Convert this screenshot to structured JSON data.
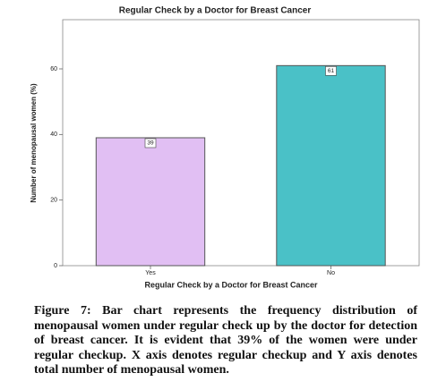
{
  "chart_data": {
    "type": "bar",
    "title": "Regular Check by a Doctor for Breast Cancer",
    "x_label": "Regular Check by a Doctor for Breast Cancer",
    "y_label": "Number of menopausal women (%)",
    "categories": [
      "Yes",
      "No"
    ],
    "values": [
      39,
      61
    ],
    "colors": [
      "#e1bff3",
      "#4ac1c7"
    ],
    "ylim": [
      0,
      75
    ],
    "yticks": [
      0,
      20,
      40,
      60
    ],
    "grid": false
  },
  "caption": "Figure 7: Bar chart represents the frequency distribution of menopausal women under regular check up by the doctor for detection of breast cancer. It is evident that 39% of the women were under regular checkup. X axis denotes regular checkup and Y axis denotes total number of menopausal women."
}
